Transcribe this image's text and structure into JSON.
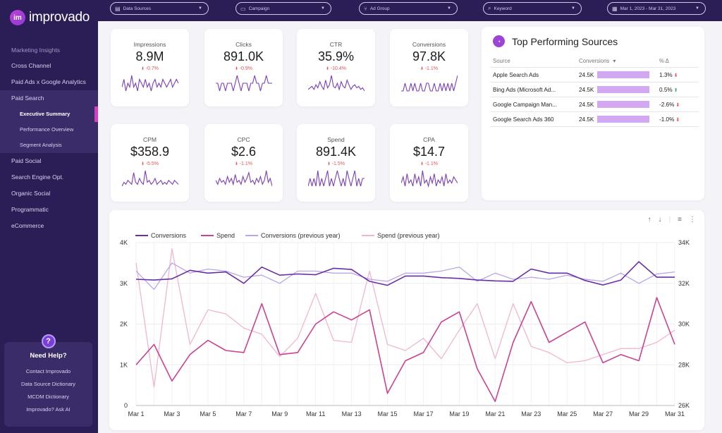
{
  "app": {
    "logo_mark": "im",
    "logo_text": "improvado"
  },
  "sidebar": {
    "items": [
      {
        "label": "Marketing Insights",
        "kind": "section"
      },
      {
        "label": "Cross Channel",
        "kind": "item"
      },
      {
        "label": "Paid Ads x Google Analytics",
        "kind": "item"
      },
      {
        "label": "Paid Search",
        "kind": "group"
      },
      {
        "label": "Executive Summary",
        "kind": "active"
      },
      {
        "label": "Performance Overview",
        "kind": "sub"
      },
      {
        "label": "Segment Analysis",
        "kind": "sub"
      },
      {
        "label": "Paid Social",
        "kind": "item"
      },
      {
        "label": "Search Engine Opt.",
        "kind": "item"
      },
      {
        "label": "Organic Social",
        "kind": "item"
      },
      {
        "label": "Programmatic",
        "kind": "item"
      },
      {
        "label": "eCommerce",
        "kind": "item"
      }
    ],
    "help": {
      "icon": "?",
      "title": "Need Help?",
      "links": [
        "Contact Improvado",
        "Data Source Dictionary",
        "MCDM Dictionary",
        "Improvado? Ask AI"
      ]
    }
  },
  "filters": {
    "data_sources": "Data Sources",
    "campaign": "Campaign",
    "ad_group": "Ad Group",
    "keyword": "Keyword",
    "date_range": "Mar 1, 2023 - Mar 31, 2023"
  },
  "kpis": [
    {
      "label": "Impressions",
      "value": "8.9M",
      "delta": "-0.7%",
      "spark": [
        5,
        7,
        4,
        6,
        5,
        8,
        5,
        6,
        4,
        7,
        6,
        5,
        7,
        5,
        6,
        4,
        6,
        7,
        5,
        6,
        5,
        7,
        6,
        5,
        6,
        7,
        5,
        6,
        7,
        6
      ]
    },
    {
      "label": "Clicks",
      "value": "891.0K",
      "delta": "-0.9%",
      "spark": [
        6,
        6,
        5,
        6,
        6,
        5,
        6,
        6,
        6,
        5,
        6,
        7,
        6,
        5,
        6,
        6,
        6,
        5,
        6,
        6,
        7,
        6,
        6,
        5,
        6,
        6,
        7,
        6,
        6,
        6
      ]
    },
    {
      "label": "CTR",
      "value": "35.9%",
      "delta": "-10.4%",
      "spark": [
        3,
        4,
        5,
        3,
        6,
        4,
        8,
        5,
        3,
        9,
        4,
        6,
        12,
        5,
        4,
        7,
        3,
        8,
        5,
        4,
        9,
        6,
        3,
        5,
        6,
        4,
        5,
        3,
        4,
        2
      ]
    },
    {
      "label": "Conversions",
      "value": "97.8K",
      "delta": "-1.1%",
      "spark": [
        5,
        5,
        6,
        5,
        5,
        6,
        5,
        6,
        5,
        5,
        6,
        5,
        5,
        6,
        6,
        5,
        5,
        6,
        5,
        5,
        6,
        5,
        6,
        5,
        6,
        5,
        6,
        5,
        6,
        7
      ]
    },
    {
      "label": "CPM",
      "value": "$358.9",
      "delta": "-5.5%",
      "spark": [
        4,
        6,
        5,
        7,
        6,
        5,
        11,
        6,
        5,
        8,
        6,
        5,
        12,
        6,
        7,
        5,
        6,
        8,
        5,
        6,
        7,
        5,
        6,
        5,
        7,
        6,
        5,
        7,
        6,
        5
      ]
    },
    {
      "label": "CPC",
      "value": "$2.6",
      "delta": "-1.1%",
      "spark": [
        5,
        3,
        6,
        4,
        5,
        3,
        7,
        4,
        6,
        3,
        8,
        4,
        5,
        3,
        7,
        4,
        6,
        9,
        4,
        5,
        3,
        6,
        4,
        7,
        3,
        5,
        10,
        4,
        6,
        2
      ]
    },
    {
      "label": "Spend",
      "value": "891.4K",
      "delta": "-1.5%",
      "spark": [
        5,
        6,
        5,
        6,
        5,
        7,
        5,
        6,
        5,
        6,
        7,
        5,
        6,
        5,
        6,
        7,
        6,
        5,
        6,
        5,
        7,
        6,
        5,
        6,
        7,
        5,
        6,
        5,
        6,
        6
      ]
    },
    {
      "label": "CPA",
      "value": "$14.7",
      "delta": "-1.1%",
      "spark": [
        5,
        7,
        4,
        8,
        5,
        6,
        4,
        8,
        5,
        7,
        4,
        9,
        5,
        6,
        4,
        7,
        5,
        8,
        4,
        6,
        5,
        7,
        4,
        8,
        5,
        6,
        5,
        7,
        6,
        5
      ]
    }
  ],
  "top_sources": {
    "icon": "chart-pie-icon",
    "title": "Top Performing Sources",
    "headers": [
      "Source",
      "Conversions",
      "% Δ"
    ],
    "sort_indicator": "▾",
    "rows": [
      {
        "source": "Apple Search Ads",
        "conversions": "24.5K",
        "pct": "1.3%",
        "dir": "down"
      },
      {
        "source": "Bing Ads (Microsoft Ad...",
        "conversions": "24.5K",
        "pct": "0.5%",
        "dir": "up"
      },
      {
        "source": "Google Campaign Man...",
        "conversions": "24.5K",
        "pct": "-2.6%",
        "dir": "down"
      },
      {
        "source": "Google Search Ads 360",
        "conversions": "24.5K",
        "pct": "-1.0%",
        "dir": "down"
      }
    ]
  },
  "chart_tools": {
    "up": "↑",
    "down": "↓",
    "filter": "≡",
    "more": "⋮"
  },
  "colors": {
    "conversions": "#6b2fa5",
    "spend": "#c9438f",
    "conversions_prev": "#b9a6e6",
    "spend_prev": "#f1b6cf"
  },
  "chart_data": {
    "type": "line",
    "x": [
      "Mar 1",
      "Mar 2",
      "Mar 3",
      "Mar 4",
      "Mar 5",
      "Mar 6",
      "Mar 7",
      "Mar 8",
      "Mar 9",
      "Mar 10",
      "Mar 11",
      "Mar 12",
      "Mar 13",
      "Mar 14",
      "Mar 15",
      "Mar 16",
      "Mar 17",
      "Mar 18",
      "Mar 19",
      "Mar 20",
      "Mar 21",
      "Mar 22",
      "Mar 23",
      "Mar 24",
      "Mar 25",
      "Mar 26",
      "Mar 27",
      "Mar 28",
      "Mar 29",
      "Mar 30",
      "Mar 31"
    ],
    "x_ticks": [
      "Mar 1",
      "Mar 3",
      "Mar 5",
      "Mar 7",
      "Mar 9",
      "Mar 11",
      "Mar 13",
      "Mar 15",
      "Mar 17",
      "Mar 19",
      "Mar 21",
      "Mar 23",
      "Mar 25",
      "Mar 27",
      "Mar 29",
      "Mar 31"
    ],
    "y_left": {
      "ticks": [
        "0",
        "1K",
        "2K",
        "3K",
        "4K"
      ],
      "lim": [
        0,
        4000
      ]
    },
    "y_right": {
      "ticks": [
        "26K",
        "28K",
        "30K",
        "32K",
        "34K"
      ],
      "lim": [
        26000,
        34000
      ]
    },
    "series": [
      {
        "name": "Conversions",
        "axis": "left",
        "values": [
          3100,
          3080,
          3110,
          3320,
          3250,
          3280,
          3000,
          3400,
          3200,
          3230,
          3210,
          3370,
          3340,
          3050,
          2950,
          3180,
          3180,
          3140,
          3120,
          3080,
          3060,
          3050,
          3350,
          3250,
          3250,
          3070,
          2960,
          3080,
          3530,
          3150,
          3150
        ]
      },
      {
        "name": "Spend",
        "axis": "right",
        "values": [
          28000,
          29000,
          27200,
          28500,
          29200,
          28700,
          28600,
          31000,
          28500,
          28600,
          30000,
          30600,
          30200,
          30700,
          26600,
          28200,
          28600,
          30100,
          30600,
          27800,
          26200,
          29100,
          31100,
          29100,
          29600,
          30100,
          28100,
          28500,
          28200,
          31300,
          29000
        ]
      },
      {
        "name": "Conversions (previous year)",
        "axis": "left",
        "values": [
          3300,
          2850,
          3500,
          3250,
          3350,
          3300,
          3150,
          3200,
          3000,
          3300,
          3300,
          3250,
          3250,
          3100,
          3050,
          3250,
          3250,
          3300,
          3400,
          3050,
          3250,
          3100,
          3150,
          3100,
          3200,
          3100,
          3050,
          3250,
          3000,
          3230,
          3280
        ]
      },
      {
        "name": "Spend (previous year)",
        "axis": "right",
        "values": [
          33000,
          26900,
          33700,
          29000,
          30700,
          30500,
          29800,
          29500,
          28400,
          29300,
          31500,
          29200,
          29100,
          32600,
          29000,
          28700,
          29300,
          28300,
          29700,
          31000,
          28300,
          31000,
          28900,
          28600,
          28100,
          28200,
          28500,
          28800,
          28800,
          29100,
          29700
        ]
      }
    ]
  }
}
